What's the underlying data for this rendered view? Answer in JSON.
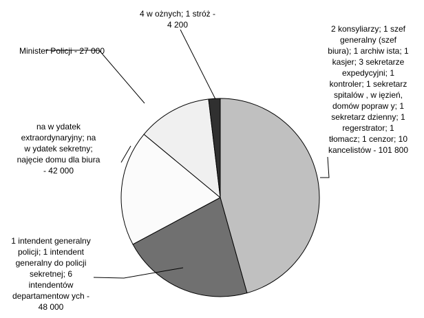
{
  "chart_data": {
    "type": "pie",
    "start_angle_deg": 0,
    "direction": "clockwise",
    "slices": [
      {
        "label": "2 konsyliarzy; 1 szef generalny (szef biura); 1 archiwista; 1 kasjer; 3 sekretarze expedycyjni; 1 kontroler; 1 sekretarz spitalów, więzień, domów poprawy; 1 sekretarz dzienny; 1 regerstrator; 1 tłomacz; 1 cenzor; 10 kancelistów - 101 800",
        "value": 101800,
        "color": "#c0c0c0"
      },
      {
        "label": "1 intendent generalny policji; 1 intendent generalny do policji sekretnej; 6 intendentów departamentowych - 48 000",
        "value": 48000,
        "color": "#707070"
      },
      {
        "label": "na wydatek extraordynaryjny; na wydatek sekretny; najęcie domu dla biura - 42 000",
        "value": 42000,
        "color": "#fbfbfb"
      },
      {
        "label": "Minister Policji - 27 000",
        "value": 27000,
        "color": "#f0f0f0"
      },
      {
        "label": "4 woźnych; 1 stróż - 4 200",
        "value": 4200,
        "color": "#303030"
      }
    ],
    "display_labels": [
      "2 konsyliarzy; 1 szef\ngeneralny (szef\nbiura); 1 archiw ista; 1\nkasjer; 3 sekretarze\nexpedycyjni; 1\nkontroler; 1 sekretarz\nspitalów , w ięzień,\ndomów popraw y; 1\nsekretarz dzienny; 1\nregerstrator; 1\ntłomacz; 1 cenzor; 10\nkancelistów - 101 800",
      "1 intendent generalny\npolicji; 1 intendent\ngeneralny do policji\nsekretnej; 6\nintendentów\ndepartamentow ych -\n48 000",
      "na w ydatek\nextraordynaryjny; na\nw ydatek sekretny;\nnajęcie domu dla biura\n- 42 000",
      "Minister Policji - 27 000",
      "4 w ożnych; 1 stróż -\n4 200"
    ]
  }
}
